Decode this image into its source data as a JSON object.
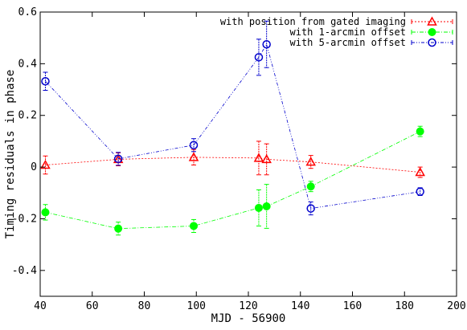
{
  "chart_data": {
    "type": "scatter",
    "xlabel": "MJD - 56900",
    "ylabel": "Timing residuals in phase",
    "xlim": [
      40,
      200
    ],
    "ylim": [
      -0.5,
      0.6
    ],
    "xticks": [
      40,
      60,
      80,
      100,
      120,
      140,
      160,
      180,
      200
    ],
    "yticks": [
      -0.4,
      -0.2,
      0,
      0.2,
      0.4,
      0.6
    ],
    "ytick_labels": [
      "-0.4",
      "-0.2",
      "0",
      "0.2",
      "0.4",
      "0.6"
    ],
    "grid": false,
    "legend_position": "top-right",
    "series": [
      {
        "name": "with position from gated imaging",
        "color": "#ff0000",
        "marker": "triangle-open",
        "points": [
          {
            "x": 42,
            "y": 0.008,
            "err": 0.035
          },
          {
            "x": 70,
            "y": 0.03,
            "err": 0.025
          },
          {
            "x": 99,
            "y": 0.038,
            "err": 0.03
          },
          {
            "x": 124,
            "y": 0.035,
            "err": 0.065
          },
          {
            "x": 127,
            "y": 0.03,
            "err": 0.06
          },
          {
            "x": 144,
            "y": 0.02,
            "err": 0.025
          },
          {
            "x": 186,
            "y": -0.02,
            "err": 0.02
          }
        ]
      },
      {
        "name": "with 1-arcmin offset",
        "color": "#00ff00",
        "marker": "circle-filled",
        "points": [
          {
            "x": 42,
            "y": -0.175,
            "err": 0.03
          },
          {
            "x": 70,
            "y": -0.238,
            "err": 0.025
          },
          {
            "x": 99,
            "y": -0.228,
            "err": 0.025
          },
          {
            "x": 124,
            "y": -0.158,
            "err": 0.07
          },
          {
            "x": 127,
            "y": -0.152,
            "err": 0.085
          },
          {
            "x": 144,
            "y": -0.075,
            "err": 0.02
          },
          {
            "x": 186,
            "y": 0.138,
            "err": 0.02
          }
        ]
      },
      {
        "name": "with 5-arcmin offset",
        "color": "#0000cc",
        "marker": "circle-open",
        "points": [
          {
            "x": 42,
            "y": 0.332,
            "err": 0.035
          },
          {
            "x": 70,
            "y": 0.032,
            "err": 0.025
          },
          {
            "x": 99,
            "y": 0.085,
            "err": 0.025
          },
          {
            "x": 124,
            "y": 0.425,
            "err": 0.07
          },
          {
            "x": 127,
            "y": 0.475,
            "err": 0.09
          },
          {
            "x": 144,
            "y": -0.16,
            "err": 0.025
          },
          {
            "x": 186,
            "y": -0.095,
            "err": 0.015
          }
        ]
      }
    ]
  }
}
